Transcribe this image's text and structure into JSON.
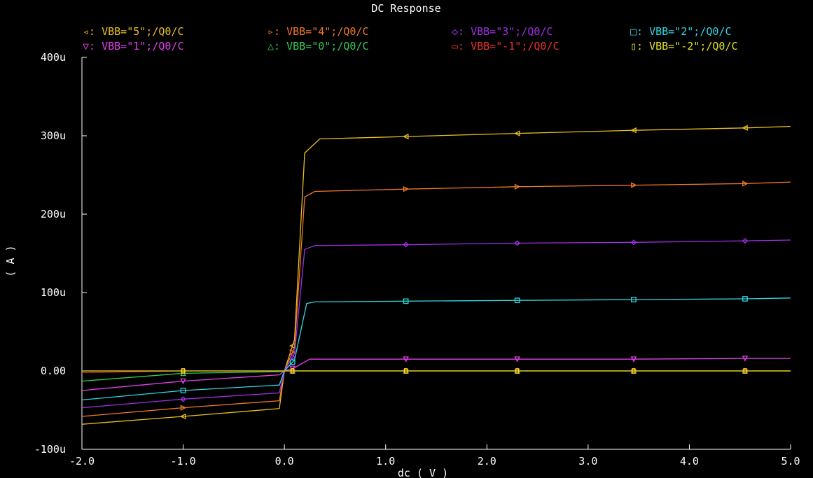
{
  "chart_data": {
    "type": "line",
    "title": "DC Response",
    "xlabel": "dc ( V )",
    "ylabel": "( A )",
    "xlim": [
      -2.0,
      5.0
    ],
    "ylim": [
      -100,
      400
    ],
    "x_ticks": [
      -2.0,
      -1.0,
      0.0,
      1.0,
      2.0,
      3.0,
      4.0,
      5.0
    ],
    "x_tick_labels": [
      "-2.0",
      "-1.0",
      "0.0",
      "1.0",
      "2.0",
      "3.0",
      "4.0",
      "5.0"
    ],
    "y_ticks": [
      -100,
      0,
      100,
      200,
      300,
      400
    ],
    "y_tick_labels": [
      "-100u",
      "0.00",
      "100u",
      "200u",
      "300u",
      "400u"
    ],
    "y_unit": "uA",
    "grid": false,
    "legend_position": "top",
    "series": [
      {
        "name": "VBB=\"5\";/Q0/C",
        "marker": "◃",
        "color": "#e8c020",
        "x": [
          -2.0,
          -1.0,
          -0.05,
          0.0,
          0.1,
          0.2,
          0.35,
          1.2,
          2.3,
          3.45,
          4.55,
          5.0
        ],
        "y": [
          -68,
          -58,
          -48,
          0,
          40,
          278,
          296,
          299,
          303,
          307,
          310,
          312
        ]
      },
      {
        "name": "VBB=\"4\";/Q0/C",
        "marker": "▹",
        "color": "#f07828",
        "x": [
          -2.0,
          -1.0,
          -0.05,
          0.0,
          0.1,
          0.2,
          0.3,
          1.2,
          2.3,
          3.45,
          4.55,
          5.0
        ],
        "y": [
          -58,
          -47,
          -38,
          0,
          30,
          222,
          229,
          232,
          235,
          237,
          239,
          241
        ]
      },
      {
        "name": "VBB=\"3\";/Q0/C",
        "marker": "◇",
        "color": "#a030e8",
        "x": [
          -2.0,
          -1.0,
          -0.05,
          0.0,
          0.1,
          0.2,
          0.3,
          1.2,
          2.3,
          3.45,
          4.55,
          5.0
        ],
        "y": [
          -47,
          -36,
          -28,
          0,
          22,
          155,
          160,
          161,
          163,
          164,
          166,
          167
        ]
      },
      {
        "name": "VBB=\"2\";/Q0/C",
        "marker": "□",
        "color": "#30d8e0",
        "x": [
          -2.0,
          -1.0,
          -0.05,
          0.0,
          0.1,
          0.22,
          0.3,
          1.2,
          2.3,
          3.45,
          4.55,
          5.0
        ],
        "y": [
          -37,
          -25,
          -18,
          0,
          14,
          86,
          88,
          89,
          90,
          91,
          92,
          93
        ]
      },
      {
        "name": "VBB=\"1\";/Q0/C",
        "marker": "▽",
        "color": "#e040e8",
        "x": [
          -2.0,
          -1.0,
          -0.05,
          0.0,
          0.1,
          0.25,
          1.2,
          2.3,
          3.45,
          4.55,
          5.0
        ],
        "y": [
          -25,
          -13,
          -5,
          0,
          4,
          15,
          15,
          15,
          15,
          16,
          16
        ]
      },
      {
        "name": "VBB=\"0\";/Q0/C",
        "marker": "△",
        "color": "#38c858",
        "x": [
          -2.0,
          -1.0,
          -0.05,
          0.0,
          0.1,
          1.2,
          2.3,
          3.45,
          4.55,
          5.0
        ],
        "y": [
          -13,
          -3,
          -1,
          0,
          0,
          0,
          0,
          0,
          0,
          0
        ]
      },
      {
        "name": "VBB=\"-1\";/Q0/C",
        "marker": "▭",
        "color": "#e83030",
        "x": [
          -2.0,
          -1.0,
          0.0,
          1.2,
          2.3,
          3.45,
          4.55,
          5.0
        ],
        "y": [
          -2,
          0,
          0,
          0,
          0,
          0,
          0,
          0
        ]
      },
      {
        "name": "VBB=\"-2\";/Q0/C",
        "marker": "▯",
        "color": "#e0e020",
        "x": [
          -2.0,
          -1.0,
          0.0,
          1.2,
          2.3,
          3.45,
          4.55,
          5.0
        ],
        "y": [
          0,
          0,
          0,
          0,
          0,
          0,
          0,
          0
        ]
      }
    ]
  }
}
